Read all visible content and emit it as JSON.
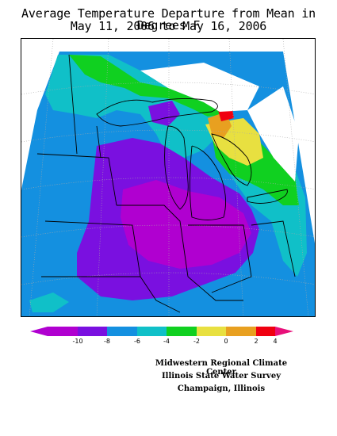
{
  "title": {
    "line1": "Average Temperature Departure from Mean in Degrees F",
    "line2": "May 11, 2006 to May 16, 2006"
  },
  "legend": {
    "labels": [
      "-10",
      "-8",
      "-6",
      "-4",
      "-2",
      "0",
      "2",
      "4"
    ],
    "colors": [
      "#b000d0",
      "#7a10e0",
      "#1490e0",
      "#10c0c8",
      "#10d020",
      "#e8e040",
      "#e8a020",
      "#f00010",
      "#e8107a"
    ]
  },
  "credits": {
    "line1": "Midwestern Regional Climate Center",
    "line2": "Illinois State Water Survey",
    "line3": "Champaign, Illinois"
  },
  "map": {
    "colors": {
      "magenta": "#b000d0",
      "purple": "#7a10e0",
      "blue": "#1490e0",
      "cyan": "#10c0c8",
      "green": "#10d020",
      "yellow": "#e8e040",
      "orange": "#e8a020",
      "red": "#f00010",
      "land_nodata": "#ffffff"
    }
  }
}
